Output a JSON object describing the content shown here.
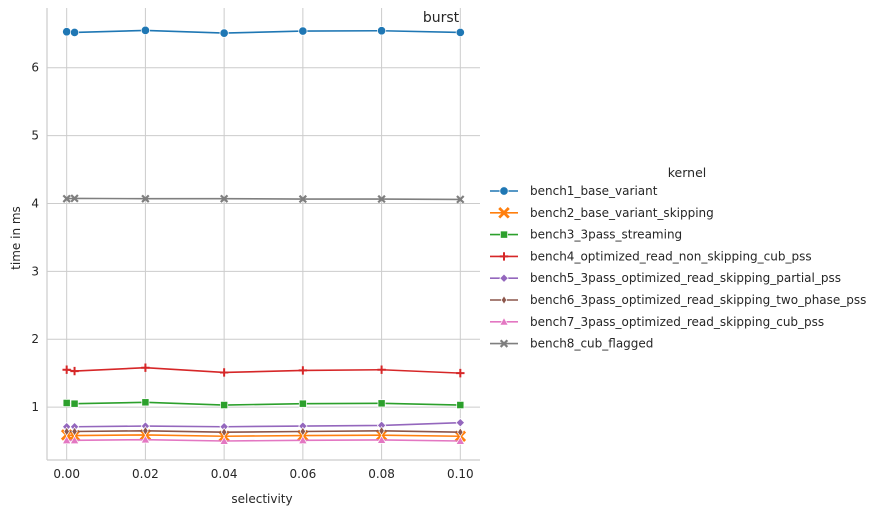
{
  "chart_data": {
    "type": "line",
    "title": "burst",
    "xlabel": "selectivity",
    "ylabel": "time in ms",
    "xlim": [
      -0.005,
      0.105
    ],
    "ylim": [
      0.22,
      6.88
    ],
    "x_ticks": [
      0.0,
      0.02,
      0.04,
      0.06,
      0.08,
      0.1
    ],
    "x_tick_labels": [
      "0.00",
      "0.02",
      "0.04",
      "0.06",
      "0.08",
      "0.10"
    ],
    "y_ticks": [
      1,
      2,
      3,
      4,
      5,
      6
    ],
    "y_tick_labels": [
      "1",
      "2",
      "3",
      "4",
      "5",
      "6"
    ],
    "grid": true,
    "legend_title": "kernel",
    "legend_position": "right",
    "x": [
      0.0,
      0.002,
      0.02,
      0.04,
      0.06,
      0.08,
      0.1
    ],
    "series": [
      {
        "name": "bench1_base_variant",
        "color": "#1f77b4",
        "marker": "circle",
        "values": [
          6.53,
          6.52,
          6.55,
          6.51,
          6.54,
          6.545,
          6.52
        ]
      },
      {
        "name": "bench2_base_variant_skipping",
        "color": "#ff7f0e",
        "marker": "x",
        "values": [
          0.59,
          0.58,
          0.59,
          0.57,
          0.58,
          0.585,
          0.57
        ]
      },
      {
        "name": "bench3_3pass_streaming",
        "color": "#2ca02c",
        "marker": "square",
        "values": [
          1.06,
          1.05,
          1.07,
          1.03,
          1.05,
          1.055,
          1.03
        ]
      },
      {
        "name": "bench4_optimized_read_non_skipping_cub_pss",
        "color": "#d62728",
        "marker": "plus",
        "values": [
          1.55,
          1.53,
          1.58,
          1.51,
          1.54,
          1.55,
          1.5
        ]
      },
      {
        "name": "bench5_3pass_optimized_read_skipping_partial_pss",
        "color": "#9467bd",
        "marker": "diamond",
        "values": [
          0.71,
          0.71,
          0.72,
          0.71,
          0.72,
          0.73,
          0.77
        ]
      },
      {
        "name": "bench6_3pass_optimized_read_skipping_two_phase_pss",
        "color": "#8c564b",
        "marker": "thin_diamond",
        "values": [
          0.64,
          0.64,
          0.65,
          0.63,
          0.64,
          0.65,
          0.63
        ]
      },
      {
        "name": "bench7_3pass_optimized_read_skipping_cub_pss",
        "color": "#e377c2",
        "marker": "triangle",
        "values": [
          0.51,
          0.51,
          0.52,
          0.5,
          0.51,
          0.515,
          0.5
        ]
      },
      {
        "name": "bench8_cub_flagged",
        "color": "#7f7f7f",
        "marker": "xbox",
        "values": [
          4.07,
          4.075,
          4.07,
          4.07,
          4.065,
          4.065,
          4.06
        ]
      }
    ]
  }
}
